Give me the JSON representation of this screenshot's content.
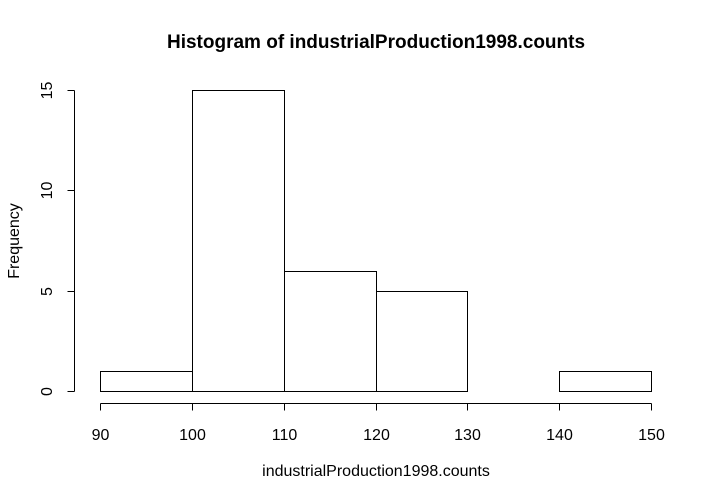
{
  "chart_data": {
    "type": "bar",
    "title": "Histogram of industrialProduction1998.counts",
    "xlabel": "industrialProduction1998.counts",
    "ylabel": "Frequency",
    "bins": [
      {
        "start": 90,
        "end": 100,
        "count": 1
      },
      {
        "start": 100,
        "end": 110,
        "count": 15
      },
      {
        "start": 110,
        "end": 120,
        "count": 6
      },
      {
        "start": 120,
        "end": 130,
        "count": 5
      },
      {
        "start": 130,
        "end": 140,
        "count": 0
      },
      {
        "start": 140,
        "end": 150,
        "count": 1
      }
    ],
    "xlim": [
      90,
      150
    ],
    "ylim": [
      0,
      15
    ],
    "xticks": [
      90,
      100,
      110,
      120,
      130,
      140,
      150
    ],
    "yticks": [
      0,
      5,
      10,
      15
    ],
    "grid": false,
    "colors": {
      "bar_fill": "#ffffff",
      "bar_stroke": "#000000"
    }
  }
}
